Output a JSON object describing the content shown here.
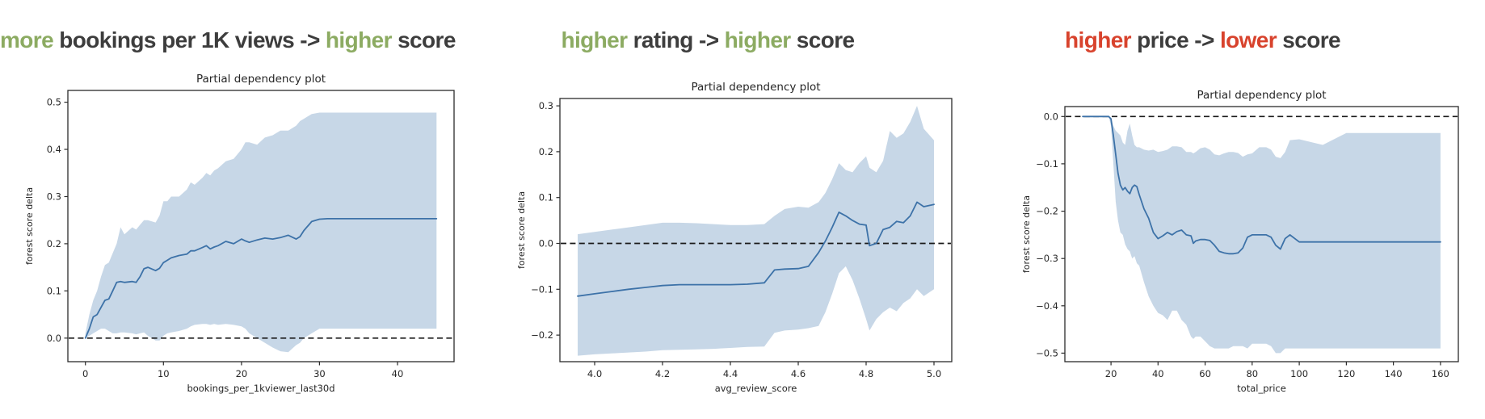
{
  "colors": {
    "accent_green": "#8cab62",
    "accent_red": "#d8432d",
    "headline_dark": "#3d3d3d",
    "line": "#3d72a8",
    "band": "#c7d7e7",
    "zero_dash": "#1a1a1a",
    "axis_text": "#262626",
    "spine": "#2b2b2b"
  },
  "panels": [
    {
      "headline": [
        {
          "text": "more",
          "color": "green"
        },
        {
          "text": " bookings per 1K views -> ",
          "color": "dark"
        },
        {
          "text": "higher",
          "color": "green"
        },
        {
          "text": " score",
          "color": "dark"
        }
      ],
      "chart_data": {
        "type": "area",
        "title": "Partial dependency plot",
        "xlabel": "bookings_per_1kviewer_last30d",
        "ylabel": "forest score delta",
        "legend": "none",
        "grid": false,
        "xlim": [
          -2.25,
          47.25
        ],
        "ylim": [
          -0.05,
          0.525
        ],
        "xticks": [
          0,
          10,
          20,
          30,
          40
        ],
        "xtick_labels": [
          "0",
          "10",
          "20",
          "30",
          "40"
        ],
        "yticks": [
          0.0,
          0.1,
          0.2,
          0.3,
          0.4,
          0.5
        ],
        "ytick_labels": [
          "0.0",
          "0.1",
          "0.2",
          "0.3",
          "0.4",
          "0.5"
        ],
        "zero_line": 0.0,
        "x": [
          0,
          0.5,
          1,
          1.5,
          2,
          2.5,
          3,
          3.5,
          4,
          4.5,
          5,
          6,
          6.5,
          7,
          7.5,
          8,
          9,
          9.5,
          10,
          10.5,
          11,
          12,
          13,
          13.5,
          14,
          15,
          15.5,
          16,
          16.5,
          17,
          18,
          19,
          20,
          20.5,
          21,
          22,
          23,
          24,
          25,
          26,
          27,
          27.5,
          28,
          29,
          30,
          31,
          35,
          40,
          45
        ],
        "mean": [
          0.0,
          0.02,
          0.045,
          0.05,
          0.065,
          0.08,
          0.083,
          0.1,
          0.118,
          0.12,
          0.118,
          0.12,
          0.118,
          0.13,
          0.147,
          0.15,
          0.143,
          0.148,
          0.16,
          0.165,
          0.17,
          0.175,
          0.178,
          0.185,
          0.185,
          0.192,
          0.196,
          0.189,
          0.193,
          0.196,
          0.205,
          0.2,
          0.21,
          0.206,
          0.203,
          0.208,
          0.212,
          0.21,
          0.213,
          0.218,
          0.21,
          0.215,
          0.228,
          0.247,
          0.252,
          0.253,
          0.253,
          0.253,
          0.253
        ],
        "upper": [
          0.01,
          0.05,
          0.08,
          0.1,
          0.13,
          0.155,
          0.16,
          0.18,
          0.2,
          0.235,
          0.22,
          0.235,
          0.23,
          0.24,
          0.25,
          0.25,
          0.245,
          0.26,
          0.29,
          0.29,
          0.3,
          0.3,
          0.315,
          0.33,
          0.325,
          0.34,
          0.35,
          0.345,
          0.355,
          0.36,
          0.375,
          0.38,
          0.4,
          0.415,
          0.415,
          0.41,
          0.425,
          0.43,
          0.44,
          0.44,
          0.45,
          0.46,
          0.465,
          0.475,
          0.478,
          0.478,
          0.478,
          0.478,
          0.478
        ],
        "lower": [
          0.0,
          0.005,
          0.01,
          0.015,
          0.02,
          0.02,
          0.015,
          0.01,
          0.01,
          0.012,
          0.012,
          0.01,
          0.008,
          0.01,
          0.012,
          0.005,
          -0.005,
          -0.005,
          0.005,
          0.01,
          0.012,
          0.015,
          0.02,
          0.025,
          0.028,
          0.03,
          0.03,
          0.028,
          0.03,
          0.028,
          0.03,
          0.028,
          0.025,
          0.02,
          0.01,
          0.0,
          -0.01,
          -0.02,
          -0.028,
          -0.03,
          -0.015,
          -0.01,
          0.0,
          0.01,
          0.02,
          0.02,
          0.02,
          0.02,
          0.02
        ]
      }
    },
    {
      "headline": [
        {
          "text": "higher",
          "color": "green"
        },
        {
          "text": " rating -> ",
          "color": "dark"
        },
        {
          "text": "higher",
          "color": "green"
        },
        {
          "text": " score",
          "color": "dark"
        }
      ],
      "chart_data": {
        "type": "area",
        "title": "Partial dependency plot",
        "xlabel": "avg_review_score",
        "ylabel": "forest score delta",
        "legend": "none",
        "grid": false,
        "xlim": [
          3.8975,
          5.0525
        ],
        "ylim": [
          -0.258,
          0.316
        ],
        "xticks": [
          4.0,
          4.2,
          4.4,
          4.6,
          4.8,
          5.0
        ],
        "xtick_labels": [
          "4.0",
          "4.2",
          "4.4",
          "4.6",
          "4.8",
          "5.0"
        ],
        "yticks": [
          0.3,
          0.2,
          0.1,
          0.0,
          -0.1,
          -0.2
        ],
        "ytick_labels": [
          "0.3",
          "0.2",
          "0.1",
          "0.0",
          "−0.1",
          "−0.2"
        ],
        "zero_line": 0.0,
        "x": [
          3.95,
          4.0,
          4.05,
          4.1,
          4.15,
          4.2,
          4.25,
          4.3,
          4.35,
          4.4,
          4.45,
          4.5,
          4.53,
          4.56,
          4.6,
          4.63,
          4.66,
          4.68,
          4.7,
          4.72,
          4.74,
          4.76,
          4.78,
          4.8,
          4.81,
          4.83,
          4.85,
          4.87,
          4.89,
          4.91,
          4.93,
          4.95,
          4.97,
          5.0
        ],
        "mean": [
          -0.115,
          -0.11,
          -0.105,
          -0.1,
          -0.096,
          -0.092,
          -0.09,
          -0.09,
          -0.09,
          -0.09,
          -0.089,
          -0.086,
          -0.058,
          -0.056,
          -0.055,
          -0.05,
          -0.02,
          0.005,
          0.035,
          0.068,
          0.06,
          0.05,
          0.042,
          0.04,
          -0.005,
          0.0,
          0.03,
          0.035,
          0.048,
          0.045,
          0.06,
          0.09,
          0.08,
          0.085
        ],
        "upper": [
          0.02,
          0.025,
          0.03,
          0.035,
          0.04,
          0.045,
          0.045,
          0.044,
          0.042,
          0.04,
          0.04,
          0.042,
          0.06,
          0.075,
          0.08,
          0.078,
          0.09,
          0.11,
          0.14,
          0.175,
          0.16,
          0.155,
          0.175,
          0.19,
          0.165,
          0.155,
          0.18,
          0.245,
          0.23,
          0.24,
          0.265,
          0.3,
          0.25,
          0.225
        ],
        "lower": [
          -0.245,
          -0.242,
          -0.24,
          -0.238,
          -0.236,
          -0.233,
          -0.232,
          -0.231,
          -0.23,
          -0.228,
          -0.226,
          -0.225,
          -0.195,
          -0.19,
          -0.188,
          -0.185,
          -0.18,
          -0.15,
          -0.11,
          -0.065,
          -0.05,
          -0.08,
          -0.12,
          -0.165,
          -0.19,
          -0.165,
          -0.15,
          -0.14,
          -0.148,
          -0.13,
          -0.12,
          -0.1,
          -0.115,
          -0.1
        ]
      }
    },
    {
      "headline": [
        {
          "text": "higher",
          "color": "red"
        },
        {
          "text": " price -> ",
          "color": "dark"
        },
        {
          "text": "lower",
          "color": "red"
        },
        {
          "text": " score",
          "color": "dark"
        }
      ],
      "chart_data": {
        "type": "area",
        "title": "Partial dependency plot",
        "xlabel": "total_price",
        "ylabel": "forest score delta",
        "legend": "none",
        "grid": false,
        "xlim": [
          0.4,
          167.6
        ],
        "ylim": [
          -0.518,
          0.021
        ],
        "xticks": [
          20,
          40,
          60,
          80,
          100,
          120,
          140,
          160
        ],
        "xtick_labels": [
          "20",
          "40",
          "60",
          "80",
          "100",
          "120",
          "140",
          "160"
        ],
        "yticks": [
          0.0,
          -0.1,
          -0.2,
          -0.3,
          -0.4,
          -0.5
        ],
        "ytick_labels": [
          "0.0",
          "−0.1",
          "−0.2",
          "−0.3",
          "−0.4",
          "−0.5"
        ],
        "zero_line": 0.0,
        "x": [
          8,
          12,
          16,
          19,
          20,
          21,
          22,
          23,
          24,
          25,
          26,
          27,
          28,
          29,
          30,
          31,
          32,
          34,
          36,
          38,
          40,
          42,
          44,
          46,
          48,
          50,
          52,
          54,
          55,
          56,
          58,
          60,
          62,
          64,
          66,
          68,
          70,
          72,
          74,
          76,
          78,
          80,
          83,
          86,
          88,
          90,
          92,
          94,
          96,
          100,
          110,
          120,
          140,
          160
        ],
        "mean": [
          0,
          0,
          0,
          0,
          -0.005,
          -0.04,
          -0.08,
          -0.12,
          -0.145,
          -0.155,
          -0.15,
          -0.158,
          -0.163,
          -0.15,
          -0.145,
          -0.148,
          -0.165,
          -0.195,
          -0.215,
          -0.245,
          -0.258,
          -0.252,
          -0.245,
          -0.25,
          -0.243,
          -0.24,
          -0.25,
          -0.252,
          -0.268,
          -0.263,
          -0.26,
          -0.26,
          -0.262,
          -0.272,
          -0.285,
          -0.288,
          -0.29,
          -0.29,
          -0.288,
          -0.278,
          -0.255,
          -0.25,
          -0.25,
          -0.25,
          -0.255,
          -0.272,
          -0.28,
          -0.258,
          -0.25,
          -0.265,
          -0.265,
          -0.265,
          -0.265,
          -0.265
        ],
        "upper": [
          0,
          0,
          0,
          0,
          -0.005,
          -0.02,
          -0.03,
          -0.035,
          -0.04,
          -0.055,
          -0.06,
          -0.03,
          -0.015,
          -0.04,
          -0.06,
          -0.065,
          -0.065,
          -0.07,
          -0.072,
          -0.07,
          -0.075,
          -0.073,
          -0.07,
          -0.063,
          -0.063,
          -0.065,
          -0.075,
          -0.075,
          -0.078,
          -0.075,
          -0.067,
          -0.065,
          -0.07,
          -0.08,
          -0.082,
          -0.078,
          -0.075,
          -0.075,
          -0.077,
          -0.085,
          -0.08,
          -0.078,
          -0.065,
          -0.065,
          -0.07,
          -0.085,
          -0.088,
          -0.075,
          -0.05,
          -0.048,
          -0.06,
          -0.035,
          -0.035,
          -0.035
        ],
        "lower": [
          0,
          0,
          0,
          0,
          -0.02,
          -0.1,
          -0.18,
          -0.22,
          -0.245,
          -0.25,
          -0.27,
          -0.28,
          -0.285,
          -0.3,
          -0.295,
          -0.31,
          -0.315,
          -0.35,
          -0.38,
          -0.4,
          -0.415,
          -0.42,
          -0.43,
          -0.41,
          -0.41,
          -0.43,
          -0.44,
          -0.465,
          -0.47,
          -0.465,
          -0.465,
          -0.475,
          -0.485,
          -0.49,
          -0.49,
          -0.49,
          -0.49,
          -0.485,
          -0.485,
          -0.485,
          -0.49,
          -0.48,
          -0.48,
          -0.48,
          -0.485,
          -0.5,
          -0.5,
          -0.49,
          -0.49,
          -0.49,
          -0.49,
          -0.49,
          -0.49,
          -0.49
        ]
      }
    }
  ]
}
